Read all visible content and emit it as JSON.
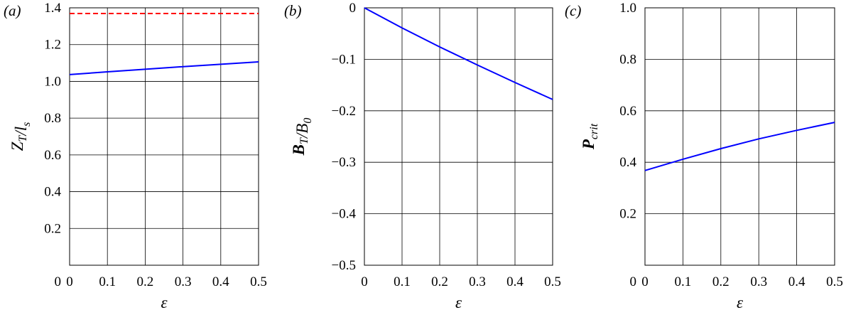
{
  "chart_data": [
    {
      "type": "line",
      "panel_label": "(a)",
      "xlabel": "ε",
      "ylabel": "Z_T/l_s",
      "xlim": [
        0,
        0.5
      ],
      "ylim": [
        0,
        1.4
      ],
      "x_ticks": [
        "0",
        "0.1",
        "0.2",
        "0.3",
        "0.4",
        "0.5"
      ],
      "y_ticks": [
        "0.2",
        "0.4",
        "0.6",
        "0.8",
        "1.0",
        "1.2",
        "1.4"
      ],
      "y_tick_values": [
        0.2,
        0.4,
        0.6,
        0.8,
        1.0,
        1.2,
        1.4
      ],
      "grid": true,
      "series": [
        {
          "style": "solid",
          "color": "#0000ff",
          "x": [
            0,
            0.1,
            0.2,
            0.3,
            0.4,
            0.5
          ],
          "y": [
            1.037,
            1.052,
            1.066,
            1.08,
            1.093,
            1.106
          ]
        },
        {
          "style": "dashed",
          "color": "#ff0000",
          "x": [
            0,
            0.5
          ],
          "y": [
            1.369,
            1.369
          ]
        }
      ]
    },
    {
      "type": "line",
      "panel_label": "(b)",
      "xlabel": "ε",
      "ylabel": "B_T/B_0",
      "xlim": [
        0,
        0.5
      ],
      "ylim": [
        -0.5,
        0
      ],
      "x_ticks": [
        "0",
        "0.1",
        "0.2",
        "0.3",
        "0.4",
        "0.5"
      ],
      "y_ticks": [
        "0",
        "−0.1",
        "−0.2",
        "−0.3",
        "−0.4",
        "−0.5"
      ],
      "y_tick_values": [
        0,
        -0.1,
        -0.2,
        -0.3,
        -0.4,
        -0.5
      ],
      "grid": true,
      "series": [
        {
          "style": "solid",
          "color": "#0000ff",
          "x": [
            0,
            0.1,
            0.2,
            0.3,
            0.4,
            0.5
          ],
          "y": [
            0,
            -0.039,
            -0.076,
            -0.111,
            -0.145,
            -0.178
          ]
        }
      ]
    },
    {
      "type": "line",
      "panel_label": "(c)",
      "xlabel": "ε",
      "ylabel": "P_crit",
      "xlim": [
        0,
        0.5
      ],
      "ylim": [
        0,
        1.0
      ],
      "x_ticks": [
        "0",
        "0.1",
        "0.2",
        "0.3",
        "0.4",
        "0.5"
      ],
      "y_ticks": [
        "0.2",
        "0.4",
        "0.6",
        "0.8",
        "1.0"
      ],
      "y_tick_values": [
        0.2,
        0.4,
        0.6,
        0.8,
        1.0
      ],
      "grid": true,
      "series": [
        {
          "style": "solid",
          "color": "#0000ff",
          "x": [
            0,
            0.1,
            0.2,
            0.3,
            0.4,
            0.5
          ],
          "y": [
            0.368,
            0.412,
            0.453,
            0.491,
            0.524,
            0.555
          ]
        }
      ]
    }
  ]
}
